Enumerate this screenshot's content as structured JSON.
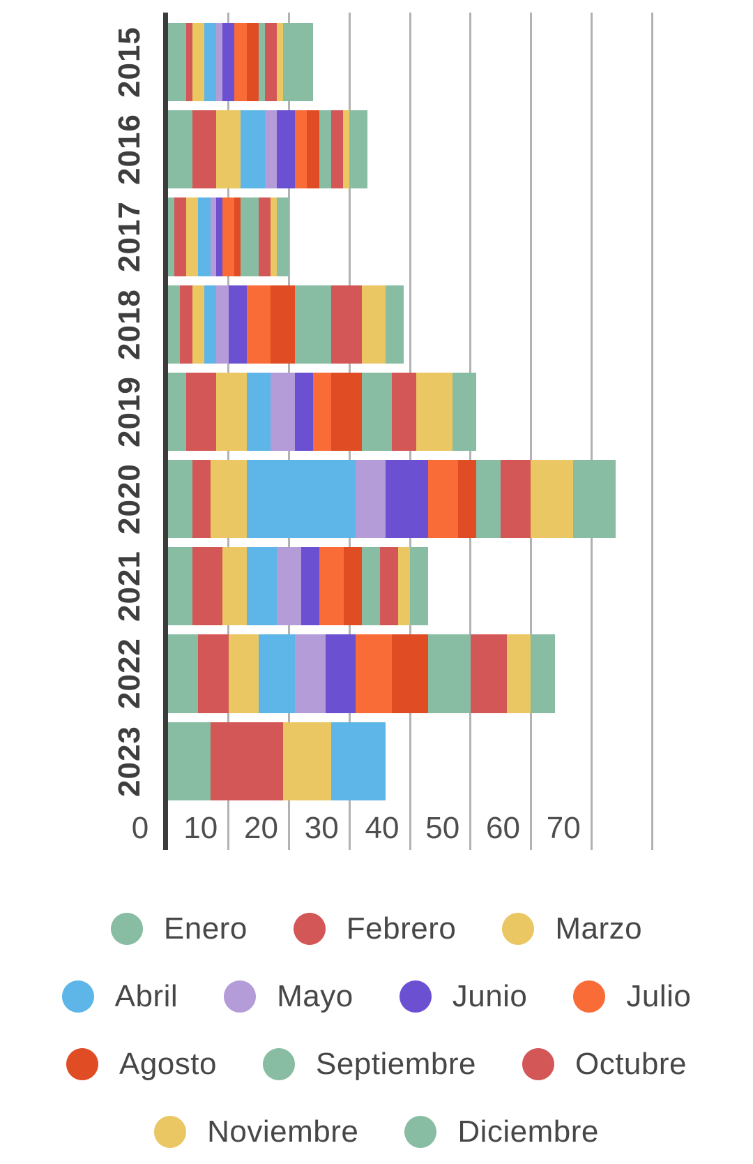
{
  "chart_data": {
    "type": "bar",
    "orientation": "horizontal",
    "stacked": true,
    "title": "",
    "xlabel": "",
    "ylabel": "",
    "categories": [
      "2015",
      "2016",
      "2017",
      "2018",
      "2019",
      "2020",
      "2021",
      "2022",
      "2023"
    ],
    "series": [
      {
        "name": "Enero",
        "color": "#88bda3",
        "values": [
          3,
          4,
          1,
          2,
          3,
          4,
          4,
          5,
          7
        ]
      },
      {
        "name": "Febrero",
        "color": "#d45757",
        "values": [
          1,
          4,
          2,
          2,
          5,
          3,
          5,
          5,
          12
        ]
      },
      {
        "name": "Marzo",
        "color": "#eac763",
        "values": [
          2,
          4,
          2,
          2,
          5,
          6,
          4,
          5,
          8
        ]
      },
      {
        "name": "Abril",
        "color": "#5db6e7",
        "values": [
          2,
          4,
          2,
          2,
          4,
          18,
          5,
          6,
          9
        ]
      },
      {
        "name": "Mayo",
        "color": "#b39cd8",
        "values": [
          1,
          2,
          1,
          2,
          4,
          5,
          4,
          5,
          0
        ]
      },
      {
        "name": "Junio",
        "color": "#6b50d2",
        "values": [
          2,
          3,
          1,
          3,
          3,
          7,
          3,
          5,
          0
        ]
      },
      {
        "name": "Julio",
        "color": "#fa6c37",
        "values": [
          2,
          2,
          2,
          4,
          3,
          5,
          4,
          6,
          0
        ]
      },
      {
        "name": "Agosto",
        "color": "#e04c24",
        "values": [
          2,
          2,
          1,
          4,
          5,
          3,
          3,
          6,
          0
        ]
      },
      {
        "name": "Septiembre",
        "color": "#88bda3",
        "values": [
          1,
          2,
          3,
          6,
          5,
          4,
          3,
          7,
          0
        ]
      },
      {
        "name": "Octubre",
        "color": "#d45757",
        "values": [
          2,
          2,
          2,
          5,
          4,
          5,
          3,
          6,
          0
        ]
      },
      {
        "name": "Noviembre",
        "color": "#eac763",
        "values": [
          1,
          1,
          1,
          4,
          6,
          7,
          2,
          4,
          0
        ]
      },
      {
        "name": "Diciembre",
        "color": "#88bda3",
        "values": [
          5,
          3,
          2,
          3,
          4,
          7,
          3,
          4,
          0
        ]
      }
    ],
    "totals_by_year": [
      24,
      33,
      20,
      39,
      51,
      74,
      43,
      64,
      36
    ],
    "x_axis": {
      "min": 0,
      "max": 80,
      "tick_step": 10,
      "tick_labels": [
        "0",
        "10",
        "20",
        "30",
        "40",
        "50",
        "60",
        "70"
      ],
      "gridlines": true
    },
    "legend_position": "bottom",
    "legend_rows": [
      [
        "Enero",
        "Febrero",
        "Marzo"
      ],
      [
        "Abril",
        "Mayo",
        "Junio",
        "Julio"
      ],
      [
        "Agosto",
        "Septiembre",
        "Octubre"
      ],
      [
        "Noviembre",
        "Diciembre"
      ]
    ],
    "colors": {
      "axis_line": "#3c3c3c",
      "gridline": "#b2b2b2",
      "tick_label_text": "#4e4e4e",
      "year_label_text": "#3e3e3e",
      "legend_text": "#474747",
      "background": "#ffffff"
    }
  }
}
